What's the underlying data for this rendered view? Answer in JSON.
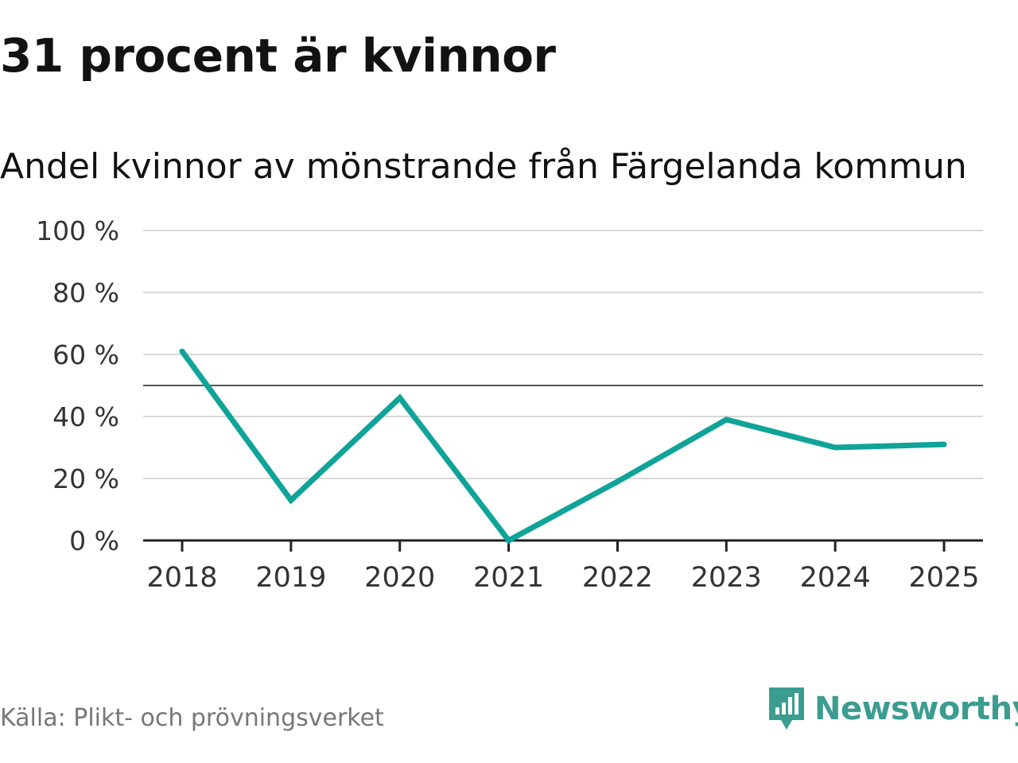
{
  "title": "31 procent är kvinnor",
  "subtitle": "Andel kvinnor av mönstrande från Färgelanda kommun",
  "source": "Källa: Plikt- och prövningsverket",
  "brand": "Newsworthy",
  "colors": {
    "line": "#0fa399",
    "grid": "#d9d9d9",
    "reference": "#555555",
    "axis": "#222222",
    "brand": "#3b9c90"
  },
  "chart_data": {
    "type": "line",
    "categories": [
      "2018",
      "2019",
      "2020",
      "2021",
      "2022",
      "2023",
      "2024",
      "2025"
    ],
    "series": [
      {
        "name": "Andel kvinnor",
        "values": [
          61,
          13,
          46,
          0,
          19,
          39,
          30,
          31
        ]
      }
    ],
    "y_ticks": [
      "0 %",
      "20 %",
      "40 %",
      "60 %",
      "80 %",
      "100 %"
    ],
    "y_tick_values": [
      0,
      20,
      40,
      60,
      80,
      100
    ],
    "reference_line": 50,
    "ylim": [
      0,
      100
    ],
    "grid": true
  }
}
